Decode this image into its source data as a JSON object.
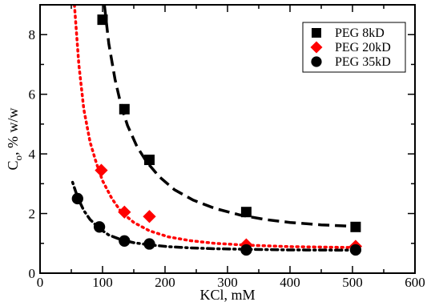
{
  "chart_data": {
    "type": "scatter",
    "xlabel": "KCl, mM",
    "ylabel_main": "C",
    "ylabel_sub": "o",
    "ylabel_rest": ", % w/w",
    "xlim": [
      0,
      600
    ],
    "ylim": [
      0,
      9
    ],
    "xticks": [
      "0",
      "100",
      "200",
      "300",
      "400",
      "500",
      "600"
    ],
    "yticks": [
      "0",
      "2",
      "4",
      "6",
      "8"
    ],
    "grid": false,
    "legend_position": "top-right",
    "series": [
      {
        "name": "PEG 8kD",
        "marker": "square",
        "color": "#000000",
        "line_style": "dashed",
        "x": [
          100,
          135,
          175,
          330,
          505
        ],
        "y": [
          8.5,
          5.5,
          3.8,
          2.05,
          1.55
        ],
        "fit_x": [
          103,
          110,
          120,
          130,
          140,
          155,
          170,
          190,
          215,
          245,
          280,
          320,
          360,
          400,
          450,
          505
        ],
        "fit_y": [
          9.0,
          7.7,
          6.5,
          5.6,
          4.95,
          4.25,
          3.75,
          3.25,
          2.8,
          2.45,
          2.17,
          1.95,
          1.8,
          1.7,
          1.62,
          1.57
        ]
      },
      {
        "name": "PEG 20kD",
        "marker": "diamond",
        "color": "#ff0000",
        "line_style": "dotted",
        "x": [
          98,
          135,
          175,
          330,
          505
        ],
        "y": [
          3.45,
          2.05,
          1.9,
          0.95,
          0.9
        ],
        "fit_x": [
          55,
          62,
          70,
          80,
          90,
          100,
          115,
          130,
          150,
          175,
          205,
          240,
          280,
          330,
          400,
          505
        ],
        "fit_y": [
          9.0,
          7.0,
          5.5,
          4.4,
          3.7,
          3.1,
          2.5,
          2.05,
          1.7,
          1.42,
          1.22,
          1.09,
          1.0,
          0.94,
          0.89,
          0.86
        ]
      },
      {
        "name": "PEG 35kD",
        "marker": "circle",
        "color": "#000000",
        "line_style": "dash-dot",
        "x": [
          60,
          95,
          135,
          175,
          330,
          505
        ],
        "y": [
          2.5,
          1.55,
          1.08,
          0.98,
          0.78,
          0.78
        ],
        "fit_x": [
          52,
          60,
          70,
          80,
          95,
          110,
          130,
          150,
          175,
          205,
          240,
          280,
          330,
          400,
          505
        ],
        "fit_y": [
          3.05,
          2.55,
          2.1,
          1.8,
          1.5,
          1.28,
          1.12,
          1.02,
          0.95,
          0.89,
          0.85,
          0.82,
          0.8,
          0.78,
          0.77
        ]
      }
    ]
  }
}
